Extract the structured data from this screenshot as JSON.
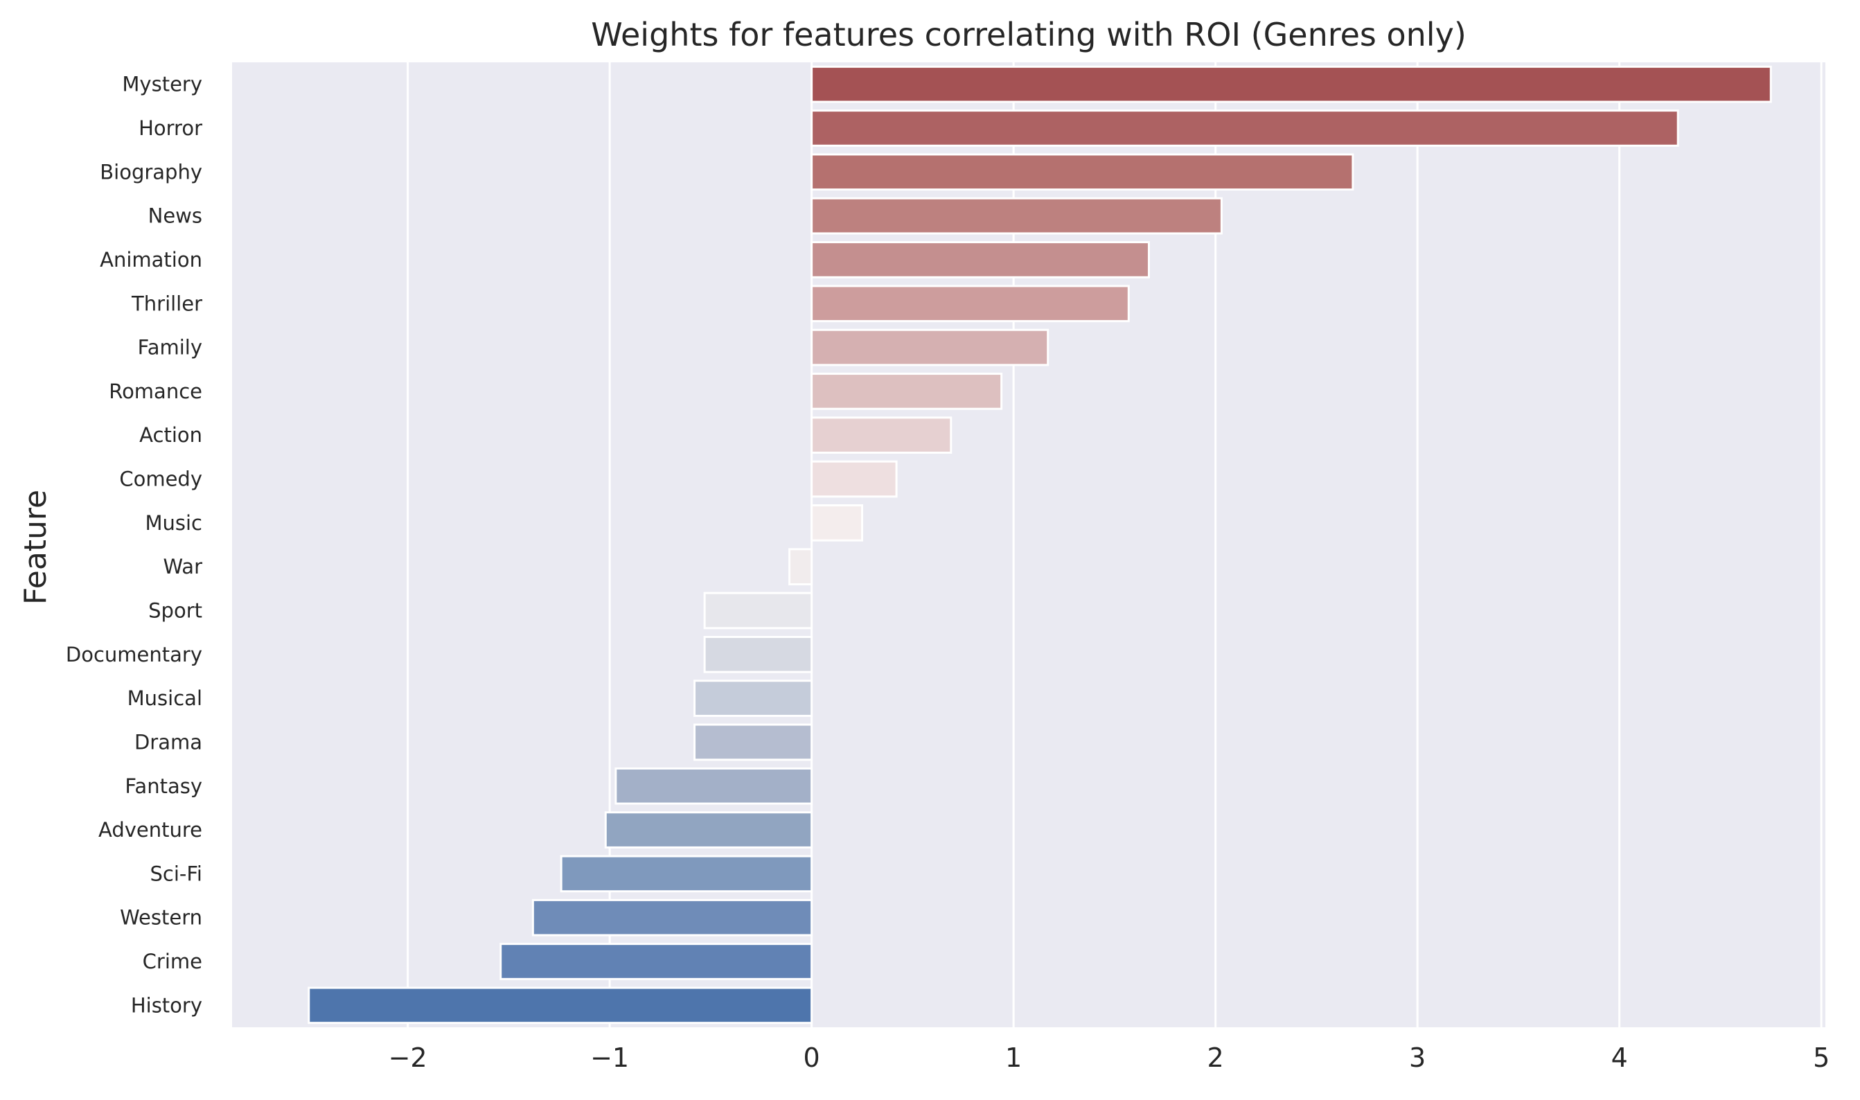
{
  "chart_data": {
    "type": "bar",
    "orientation": "horizontal",
    "title": "Weights for features correlating with ROI (Genres only)",
    "xlabel": "",
    "ylabel": "Feature",
    "xlim": [
      -2.87,
      5.02
    ],
    "xticks": [
      -2,
      -1,
      0,
      1,
      2,
      3,
      4,
      5
    ],
    "xtick_labels": [
      "−2",
      "−1",
      "0",
      "1",
      "2",
      "3",
      "4",
      "5"
    ],
    "grid": true,
    "categories": [
      "Mystery",
      "Horror",
      "Biography",
      "News",
      "Animation",
      "Thriller",
      "Family",
      "Romance",
      "Action",
      "Comedy",
      "Music",
      "War",
      "Sport",
      "Documentary",
      "Musical",
      "Drama",
      "Fantasy",
      "Adventure",
      "Sci-Fi",
      "Western",
      "Crime",
      "History"
    ],
    "values": [
      4.75,
      4.29,
      2.68,
      2.03,
      1.67,
      1.57,
      1.17,
      0.94,
      0.69,
      0.42,
      0.25,
      -0.11,
      -0.53,
      -0.53,
      -0.58,
      -0.58,
      -0.97,
      -1.02,
      -1.24,
      -1.38,
      -1.54,
      -2.49
    ],
    "colors": [
      "#a45254",
      "#ad6263",
      "#b5716f",
      "#bd817f",
      "#c48f8f",
      "#cd9d9d",
      "#d5b0b1",
      "#ddc0c0",
      "#e6d0d1",
      "#eedfe0",
      "#f4eded",
      "#f1eced",
      "#e7e7ec",
      "#d6d9e2",
      "#c5ccda",
      "#b5bdd0",
      "#a3b0c8",
      "#91a5c1",
      "#7f99bd",
      "#6f8cb8",
      "#6182b4",
      "#4e75ac"
    ],
    "style": {
      "background": "#eaeaf2",
      "grid_color": "#ffffff",
      "bar_edge": "#ffffff"
    }
  }
}
